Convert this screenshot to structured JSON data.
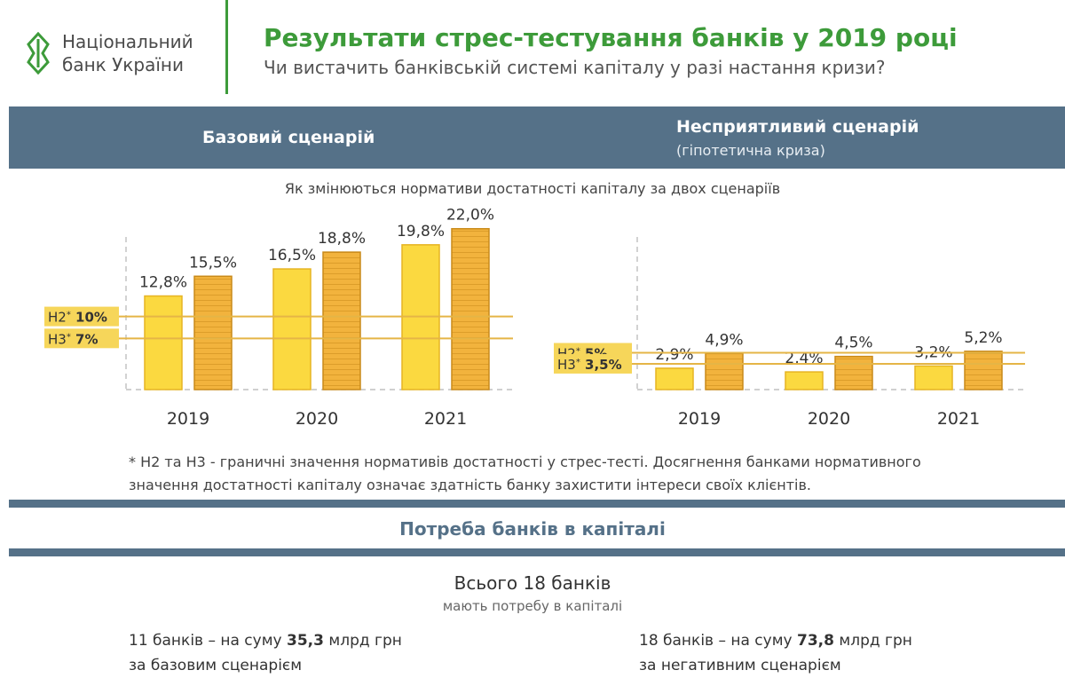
{
  "header": {
    "logo_line1": "Національний",
    "logo_line2": "банк України",
    "title": "Результати стрес-тестування банків у 2019 році",
    "subtitle": "Чи вистачить банківській системі капіталу у разі настання кризи?"
  },
  "scenarios": {
    "base": "Базовий сценарій",
    "adverse": "Несприятливий сценарій",
    "adverse_note": "(гіпотетична криза)"
  },
  "chart_caption": "Як змінюються нормативи достатності капіталу за двох сценаріїв",
  "chart_data": [
    {
      "type": "bar",
      "scenario": "Базовий сценарій",
      "categories": [
        "2019",
        "2020",
        "2021"
      ],
      "series": [
        {
          "values": [
            12.8,
            16.5,
            19.8
          ],
          "labels": [
            "12,8%",
            "16,5%",
            "19,8%"
          ]
        },
        {
          "values": [
            15.5,
            18.8,
            22.0
          ],
          "labels": [
            "15,5%",
            "18,8%",
            "22,0%"
          ]
        }
      ],
      "thresholds": [
        {
          "name": "Н2",
          "value": 10,
          "label": "10%"
        },
        {
          "name": "Н3",
          "value": 7,
          "label": "7%"
        }
      ]
    },
    {
      "type": "bar",
      "scenario": "Несприятливий сценарій",
      "categories": [
        "2019",
        "2020",
        "2021"
      ],
      "series": [
        {
          "values": [
            2.9,
            2.4,
            3.2
          ],
          "labels": [
            "2,9%",
            "2,4%",
            "3,2%"
          ]
        },
        {
          "values": [
            4.9,
            4.5,
            5.2
          ],
          "labels": [
            "4,9%",
            "4,5%",
            "5,2%"
          ]
        }
      ],
      "thresholds": [
        {
          "name": "Н2",
          "value": 5,
          "label": "5%"
        },
        {
          "name": "Н3",
          "value": 3.5,
          "label": "3,5%"
        }
      ]
    }
  ],
  "colors": {
    "green": "#3d9b3a",
    "band": "#557188",
    "bar_light": "#fbd940",
    "bar_light_stroke": "#e6b422",
    "bar_dark": "#f2b33d",
    "bar_dark_stroke": "#c98a1a",
    "threshold_line": "#e5b546",
    "threshold_label_bg": "#f6d65a"
  },
  "footnote": {
    "line1": "* Н2 та Н3 - граничні значення нормативів достатності у стрес-тесті. Досягнення банками нормативного",
    "line2": "значення достатності капіталу означає здатність банку захистити інтереси своїх клієнтів."
  },
  "need": {
    "title": "Потреба банків в капіталі",
    "total": "Всього 18 банків",
    "total_sub": "мають потребу в капіталі",
    "base_pre": "11 банків – на суму ",
    "base_amount": "35,3",
    "base_post": " млрд грн",
    "base_line2": "за базовим сценарієм",
    "adv_pre": "18 банків – на суму ",
    "adv_amount": "73,8",
    "adv_post": " млрд грн",
    "adv_line2": "за негативним сценарієм"
  }
}
